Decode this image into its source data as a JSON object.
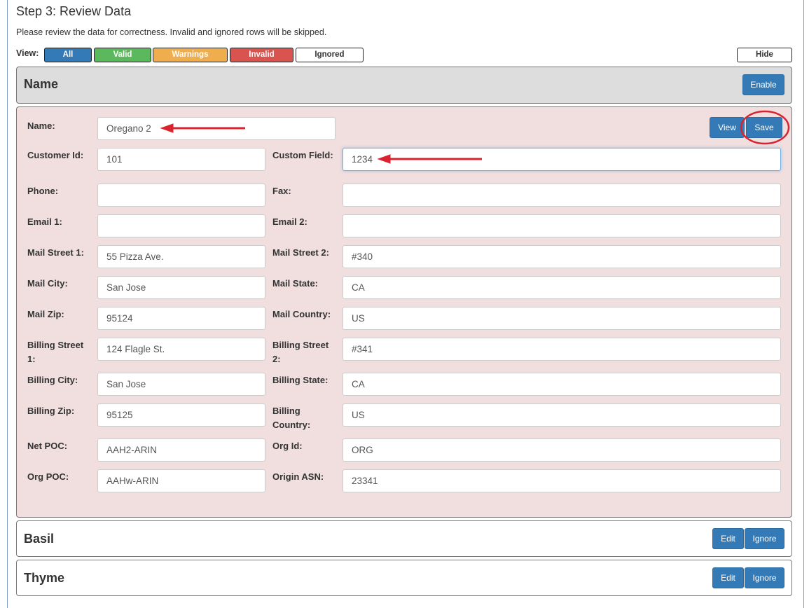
{
  "title": "Step 3: Review Data",
  "intro": "Please review the data for correctness. Invalid and ignored rows will be skipped.",
  "view_label": "View:",
  "filters": [
    {
      "label": "All",
      "color": "#337ab7"
    },
    {
      "label": "Valid",
      "color": "#5cb85c"
    },
    {
      "label": "Warnings",
      "color": "#f0ad4e"
    },
    {
      "label": "Invalid",
      "color": "#d9534f"
    },
    {
      "label": "Ignored",
      "color": "#ffffff"
    }
  ],
  "hide_label": "Hide",
  "header_panel": {
    "title": "Name",
    "enable_label": "Enable"
  },
  "edit_panel": {
    "view_label": "View",
    "save_label": "Save",
    "name": {
      "label": "Name:",
      "value": "Oregano 2"
    },
    "rows": [
      [
        {
          "label": "Customer Id:",
          "value": "101"
        },
        {
          "label": "Custom Field:",
          "value": "1234"
        }
      ],
      [
        {
          "label": "Phone:",
          "value": ""
        },
        {
          "label": "Fax:",
          "value": ""
        }
      ],
      [
        {
          "label": "Email 1:",
          "value": ""
        },
        {
          "label": "Email 2:",
          "value": ""
        }
      ],
      [
        {
          "label": "Mail Street 1:",
          "value": "55 Pizza Ave."
        },
        {
          "label": "Mail Street 2:",
          "value": "#340"
        }
      ],
      [
        {
          "label": "Mail City:",
          "value": "San Jose"
        },
        {
          "label": "Mail State:",
          "value": "CA"
        }
      ],
      [
        {
          "label": "Mail Zip:",
          "value": "95124"
        },
        {
          "label": "Mail Country:",
          "value": "US"
        }
      ],
      [
        {
          "label": "Billing Street 1:",
          "value": "124 Flagle St."
        },
        {
          "label": "Billing Street 2:",
          "value": "#341"
        }
      ],
      [
        {
          "label": "Billing City:",
          "value": "San Jose"
        },
        {
          "label": "Billing State:",
          "value": "CA"
        }
      ],
      [
        {
          "label": "Billing Zip:",
          "value": "95125"
        },
        {
          "label": "Billing Country:",
          "value": "US"
        }
      ],
      [
        {
          "label": "Net POC:",
          "value": "AAH2-ARIN"
        },
        {
          "label": "Org Id:",
          "value": "ORG"
        }
      ],
      [
        {
          "label": "Org POC:",
          "value": "AAHw-ARIN"
        },
        {
          "label": "Origin ASN:",
          "value": "23341"
        }
      ]
    ]
  },
  "records": [
    {
      "title": "Basil",
      "edit_label": "Edit",
      "ignore_label": "Ignore"
    },
    {
      "title": "Thyme",
      "edit_label": "Edit",
      "ignore_label": "Ignore"
    }
  ],
  "annotation_color": "#d9232e"
}
